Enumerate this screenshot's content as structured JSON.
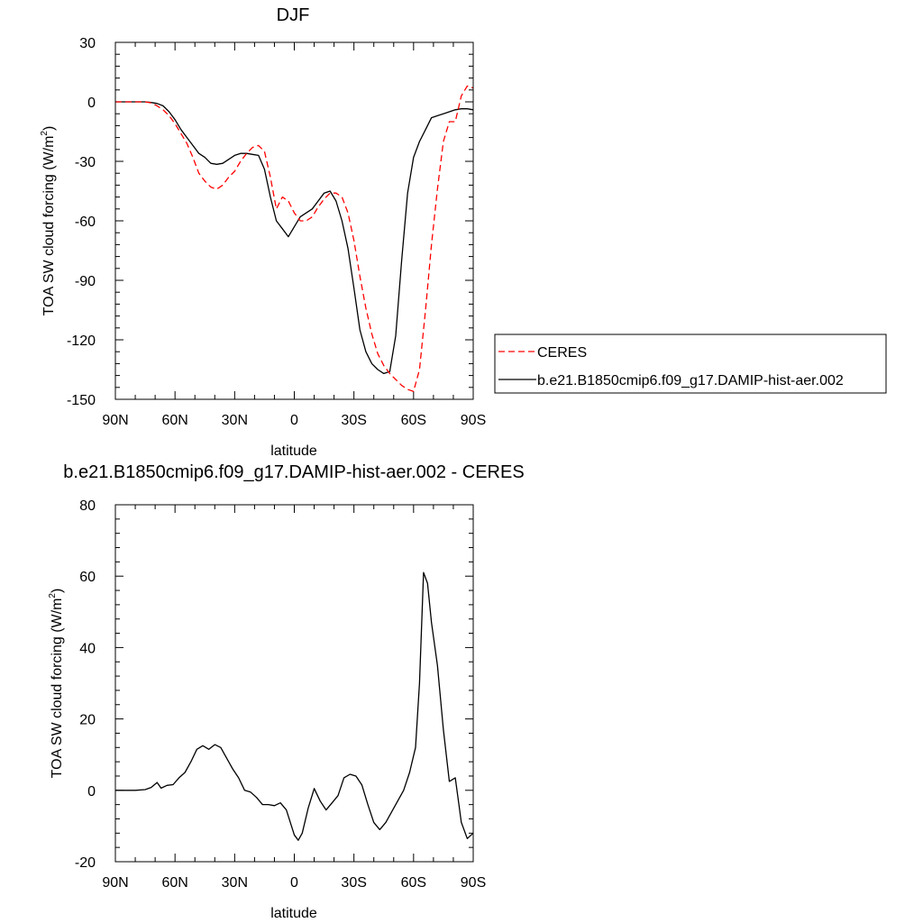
{
  "chart_data": [
    {
      "type": "line",
      "title": "DJF",
      "xlabel": "latitude",
      "ylabel": "TOA SW cloud forcing (W/m",
      "ylabel_sup": "2",
      "ylabel_tail": ")",
      "xlim": [
        90,
        -90
      ],
      "ylim": [
        -150,
        30
      ],
      "x_ticks": [
        90,
        60,
        30,
        0,
        -30,
        -60,
        -90
      ],
      "x_tick_labels": [
        "90N",
        "60N",
        "30N",
        "0",
        "30S",
        "60S",
        "90S"
      ],
      "y_ticks": [
        -150,
        -120,
        -90,
        -60,
        -30,
        0,
        30
      ],
      "y_tick_labels": [
        "-150",
        "-120",
        "-90",
        "-60",
        "-30",
        "0",
        "30"
      ],
      "grid": false,
      "legend": {
        "placement": "outside-right",
        "entries": [
          "CERES",
          "b.e21.B1850cmip6.f09_g17.DAMIP-hist-aer.002"
        ]
      },
      "series": [
        {
          "name": "CERES",
          "color": "#ff0000",
          "dash": "dashed",
          "x": [
            90,
            85,
            80,
            75,
            72,
            69,
            66,
            63,
            60,
            57,
            54,
            51,
            48,
            45,
            42,
            39,
            36,
            33,
            30,
            27,
            24,
            21,
            18,
            15,
            12,
            9,
            6,
            3,
            0,
            -3,
            -6,
            -9,
            -12,
            -15,
            -18,
            -21,
            -24,
            -27,
            -30,
            -33,
            -36,
            -39,
            -42,
            -45,
            -48,
            -51,
            -54,
            -57,
            -60,
            -63,
            -66,
            -69,
            -72,
            -75,
            -78,
            -81,
            -84,
            -87,
            -90
          ],
          "values": [
            0,
            0,
            0,
            0,
            -0.5,
            -2,
            -4,
            -7,
            -11,
            -16,
            -21,
            -28,
            -36,
            -40,
            -43,
            -44,
            -42,
            -38,
            -35,
            -30,
            -26,
            -23,
            -22,
            -25,
            -38,
            -54,
            -48,
            -50,
            -56,
            -60,
            -60,
            -58,
            -53,
            -49,
            -46,
            -46,
            -48,
            -56,
            -70,
            -88,
            -104,
            -117,
            -127,
            -133,
            -137,
            -140,
            -143,
            -145,
            -146,
            -135,
            -105,
            -72,
            -44,
            -20,
            -10,
            -10,
            3,
            8,
            7
          ]
        },
        {
          "name": "b.e21.B1850cmip6.f09_g17.DAMIP-hist-aer.002",
          "color": "#000000",
          "dash": "solid",
          "x": [
            90,
            85,
            80,
            75,
            72,
            69,
            66,
            63,
            60,
            57,
            54,
            51,
            48,
            45,
            42,
            39,
            36,
            33,
            30,
            27,
            24,
            21,
            18,
            15,
            12,
            9,
            6,
            3,
            0,
            -3,
            -6,
            -9,
            -12,
            -15,
            -18,
            -21,
            -24,
            -27,
            -30,
            -33,
            -36,
            -39,
            -42,
            -45,
            -48,
            -51,
            -54,
            -57,
            -60,
            -63,
            -66,
            -69,
            -72,
            -75,
            -78,
            -81,
            -84,
            -87,
            -90
          ],
          "values": [
            0,
            0,
            0,
            0,
            -0.3,
            -0.8,
            -2,
            -5,
            -9,
            -14,
            -18,
            -22,
            -26,
            -28,
            -31,
            -31.5,
            -31,
            -29,
            -27,
            -26,
            -26,
            -26.5,
            -27,
            -34,
            -48,
            -60,
            -64,
            -68,
            -63,
            -58,
            -56,
            -54,
            -50,
            -46,
            -45,
            -50,
            -60,
            -74,
            -94,
            -115,
            -126,
            -132,
            -135,
            -137,
            -136,
            -118,
            -80,
            -46,
            -28,
            -20,
            -14,
            -8,
            -7,
            -6,
            -5,
            -4,
            -3.5,
            -3.5,
            -4
          ]
        }
      ]
    },
    {
      "type": "line",
      "title": "b.e21.B1850cmip6.f09_g17.DAMIP-hist-aer.002 - CERES",
      "xlabel": "latitude",
      "ylabel": "TOA SW cloud forcing (W/m",
      "ylabel_sup": "2",
      "ylabel_tail": ")",
      "xlim": [
        90,
        -90
      ],
      "ylim": [
        -20,
        80
      ],
      "x_ticks": [
        90,
        60,
        30,
        0,
        -30,
        -60,
        -90
      ],
      "x_tick_labels": [
        "90N",
        "60N",
        "30N",
        "0",
        "30S",
        "60S",
        "90S"
      ],
      "y_ticks": [
        -20,
        0,
        20,
        40,
        60,
        80
      ],
      "y_tick_labels": [
        "-20",
        "0",
        "20",
        "40",
        "60",
        "80"
      ],
      "grid": false,
      "series": [
        {
          "name": "b.e21.B1850cmip6.f09_g17.DAMIP-hist-aer.002 - CERES",
          "color": "#000000",
          "dash": "solid",
          "x": [
            90,
            80,
            75,
            72,
            69,
            67,
            64,
            61,
            58,
            55,
            52,
            49,
            46,
            43,
            40,
            37,
            34,
            31,
            28,
            25,
            22,
            19,
            16,
            13,
            10,
            7,
            4,
            2,
            0,
            -2,
            -4,
            -7,
            -10,
            -13,
            -16,
            -19,
            -22,
            -25,
            -28,
            -31,
            -34,
            -37,
            -40,
            -43,
            -46,
            -49,
            -52,
            -55,
            -58,
            -61,
            -63,
            -65,
            -67,
            -69,
            -72,
            -75,
            -78,
            -81,
            -84,
            -87,
            -90
          ],
          "values": [
            0,
            0,
            0.2,
            0.8,
            2.2,
            0.6,
            1.4,
            1.6,
            3.5,
            5,
            8,
            11.5,
            12.5,
            11.5,
            12.8,
            12,
            9,
            6,
            3.5,
            0,
            -0.5,
            -2,
            -4,
            -4,
            -4.3,
            -3.5,
            -5.5,
            -9,
            -12.5,
            -14,
            -12,
            -5,
            0.5,
            -3,
            -5.5,
            -3.5,
            -1.5,
            3.5,
            4.5,
            4,
            1.5,
            -4,
            -9,
            -11,
            -9,
            -6,
            -3,
            0,
            5,
            12,
            30,
            61,
            58,
            47,
            35,
            17,
            2.5,
            3.5,
            -9,
            -13.5,
            -12
          ]
        }
      ]
    }
  ]
}
